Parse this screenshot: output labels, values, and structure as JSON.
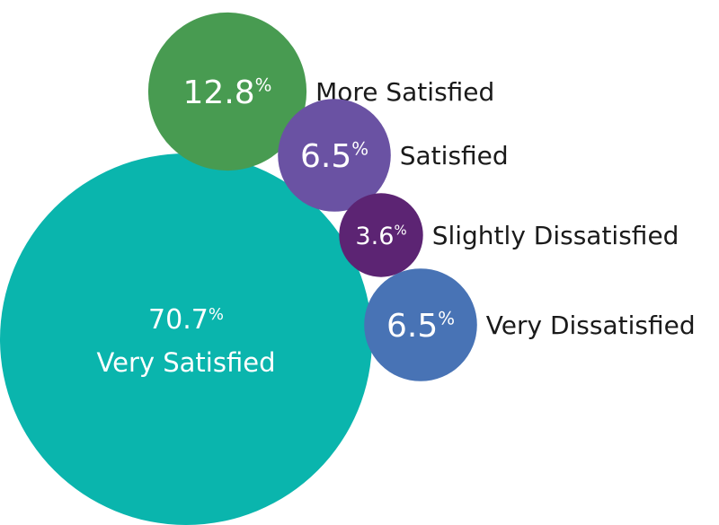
{
  "chart_data": {
    "type": "bubble",
    "title": "",
    "legend": "none",
    "segments": [
      {
        "value": 70.7,
        "value_text": "70.7",
        "unit": "%",
        "label": "Very Satisfied",
        "color": "#0ab5ad"
      },
      {
        "value": 12.8,
        "value_text": "12.8",
        "unit": "%",
        "label": "More Satisfied",
        "color": "#489b51"
      },
      {
        "value": 6.5,
        "value_text": "6.5",
        "unit": "%",
        "label": "Satisfied",
        "color": "#6a52a3"
      },
      {
        "value": 3.6,
        "value_text": "3.6",
        "unit": "%",
        "label": "Slightly Dissatisfied",
        "color": "#5c2473"
      },
      {
        "value": 6.5,
        "value_text": "6.5",
        "unit": "%",
        "label": "Very Dissatisfied",
        "color": "#4873b5"
      }
    ]
  }
}
